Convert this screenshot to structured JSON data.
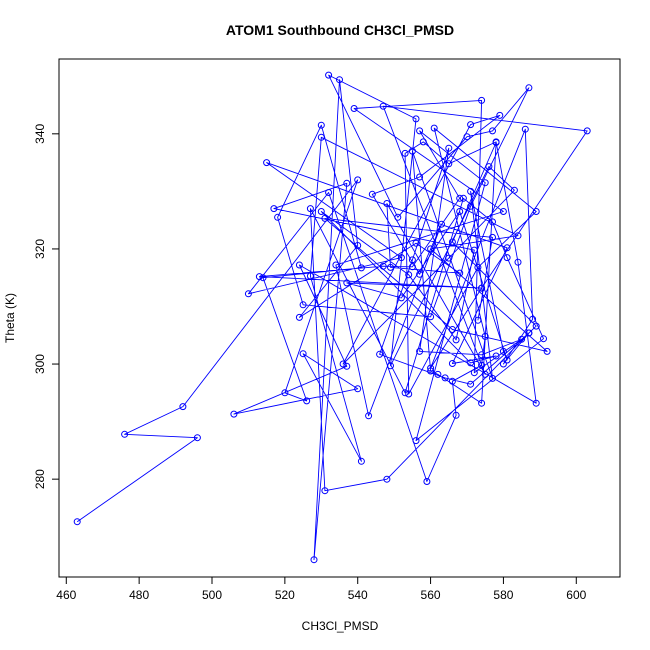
{
  "chart_data": {
    "type": "line",
    "title": "ATOM1 Southbound CH3Cl_PMSD",
    "xlabel": "CH3Cl_PMSD",
    "ylabel": "Theta (K)",
    "xlim": [
      458,
      612
    ],
    "ylim": [
      263,
      353
    ],
    "xticks": [
      460,
      480,
      500,
      520,
      540,
      560,
      580,
      600
    ],
    "yticks": [
      280,
      300,
      320,
      340
    ],
    "grid": false,
    "legend": "none",
    "color": "#0000ff",
    "series": [
      {
        "x": [
          463,
          496,
          476,
          492,
          540,
          520,
          526,
          514,
          541,
          530,
          518,
          525,
          560,
          571,
          587,
          577,
          570,
          551,
          532,
          556,
          549,
          576,
          583,
          565,
          536,
          571,
          579,
          557,
          544,
          557,
          563,
          543,
          534,
          580,
          539,
          574,
          572,
          585,
          574,
          557,
          565,
          555,
          546,
          564,
          571,
          587,
          589,
          566,
          578,
          574,
          562,
          560,
          555,
          577,
          571,
          580,
          581,
          568,
          552,
          537,
          574,
          513,
          547,
          555,
          568,
          557,
          575,
          556,
          591,
          581,
          577,
          569,
          553,
          527,
          531,
          548,
          587,
          580,
          588,
          586,
          560,
          574,
          603,
          547,
          575,
          548,
          549,
          568,
          556,
          524,
          540,
          535,
          528,
          537,
          517,
          572,
          567,
          554,
          530,
          571,
          578,
          566,
          581,
          515,
          552,
          510,
          532,
          559,
          567,
          566,
          574,
          575,
          561,
          589,
          573,
          554,
          553,
          558,
          565,
          578,
          584,
          589,
          524,
          537,
          506,
          540,
          525,
          541,
          527,
          530,
          584,
          560,
          592,
          566,
          531,
          577,
          573
        ],
        "y": [
          272.6,
          287.2,
          287.8,
          292.6,
          332,
          295,
          293.6,
          315,
          316.7,
          341.5,
          325.5,
          310.3,
          308.2,
          327.4,
          348,
          340.5,
          339.5,
          325.5,
          350.2,
          342.6,
          299.7,
          334.3,
          330.2,
          318.4,
          300,
          341.6,
          343.2,
          332.5,
          329.5,
          315.6,
          324.3,
          291,
          317.2,
          326.5,
          344.4,
          345.8,
          298.5,
          304.3,
          301.6,
          302.2,
          337.5,
          318.1,
          301.7,
          297.6,
          296.5,
          305.4,
          306.6,
          321.2,
          338.5,
          293.2,
          298.2,
          298.8,
          337,
          297.5,
          330,
          302.2,
          300.7,
          326.5,
          311.5,
          314.1,
          313.2,
          315.2,
          317,
          316.9,
          328.8,
          340.5,
          331.5,
          286.7,
          304.4,
          318.5,
          324.7,
          328.8,
          295,
          327,
          278,
          280,
          305.4,
          300,
          307.8,
          340.8,
          299.3,
          313.2,
          340.5,
          344.8,
          298.2,
          327.9,
          316.8,
          315.8,
          321,
          308.1,
          320.6,
          349.4,
          266,
          331.4,
          327,
          319.8,
          304.2,
          315.5,
          326.5,
          300.2,
          301.4,
          300.1,
          320.2,
          335,
          318.5,
          312.2,
          329.8,
          279.6,
          291.1,
          297,
          299.8,
          304.8,
          341,
          326.5,
          316.8,
          294.8,
          336.6,
          338.6,
          334.8,
          338.6,
          317.7,
          293.2,
          317.2,
          299.6,
          291.3,
          295.7,
          301.8,
          283.1,
          315.3,
          339.4,
          322.3,
          320,
          302.2,
          306,
          325.3,
          322,
          307.6
        ]
      }
    ]
  }
}
